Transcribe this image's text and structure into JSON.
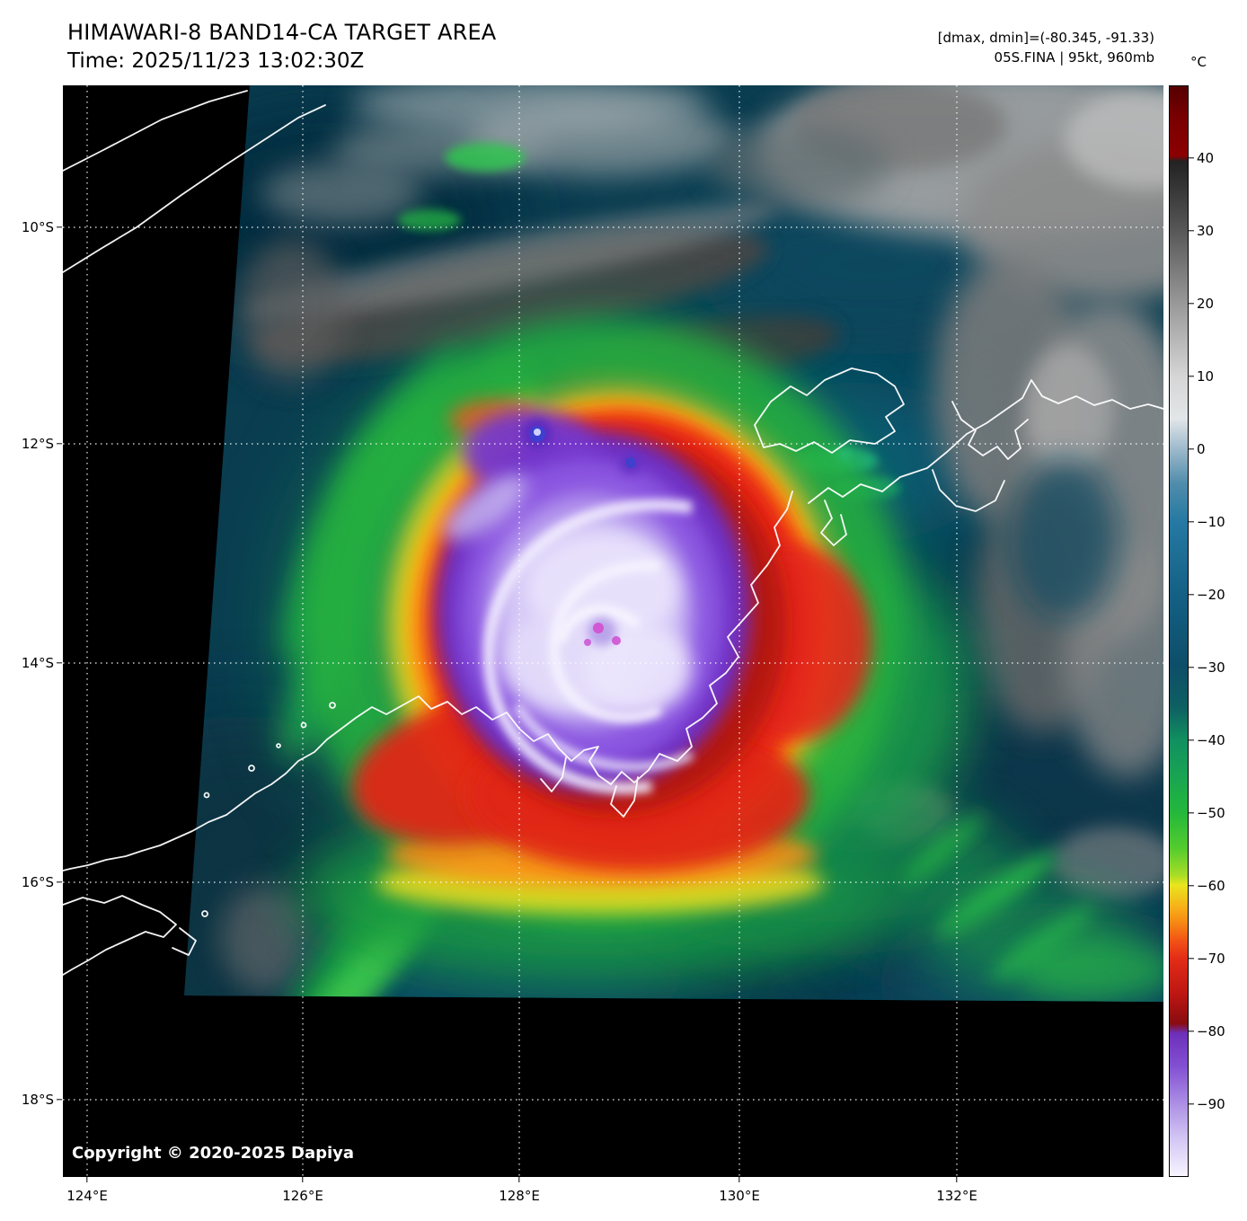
{
  "header": {
    "title": "HIMAWARI-8 BAND14-CA TARGET AREA",
    "time": "Time: 2025/11/23 13:02:30Z",
    "dmax_dmin": "[dmax, dmin]=(-80.345, -91.33)",
    "storm": "05S.FINA | 95kt, 960mb"
  },
  "map": {
    "copyright": "Copyright © 2020-2025 Dapiya"
  },
  "axes": {
    "lat_tick_labels": [
      "10°S",
      "12°S",
      "14°S",
      "16°S",
      "18°S"
    ],
    "lon_tick_labels": [
      "124°E",
      "126°E",
      "128°E",
      "130°E",
      "132°E"
    ]
  },
  "colorbar": {
    "unit": "°C",
    "tick_labels": [
      "40",
      "30",
      "20",
      "10",
      "0",
      "−10",
      "−20",
      "−30",
      "−40",
      "−50",
      "−60",
      "−70",
      "−80",
      "−90"
    ],
    "range": [
      50,
      -100
    ],
    "gradient": [
      {
        "p": 0,
        "c": "#550000"
      },
      {
        "p": 3,
        "c": "#7a0000"
      },
      {
        "p": 6.4,
        "c": "#8b0000"
      },
      {
        "p": 6.9,
        "c": "#222222"
      },
      {
        "p": 13,
        "c": "#555555"
      },
      {
        "p": 20,
        "c": "#999999"
      },
      {
        "p": 26.7,
        "c": "#d6d6d6"
      },
      {
        "p": 30.5,
        "c": "#e2e6e8"
      },
      {
        "p": 33.3,
        "c": "#9db9cb"
      },
      {
        "p": 36.5,
        "c": "#4f8cab"
      },
      {
        "p": 40,
        "c": "#2579a2"
      },
      {
        "p": 46.7,
        "c": "#146085"
      },
      {
        "p": 53.3,
        "c": "#0d4e68"
      },
      {
        "p": 57,
        "c": "#0e6062"
      },
      {
        "p": 60,
        "c": "#119060"
      },
      {
        "p": 63.3,
        "c": "#18a452"
      },
      {
        "p": 66.7,
        "c": "#24b83b"
      },
      {
        "p": 70,
        "c": "#55cc2e"
      },
      {
        "p": 72.4,
        "c": "#a8dd26"
      },
      {
        "p": 73.3,
        "c": "#e9e51e"
      },
      {
        "p": 75.4,
        "c": "#f7ae18"
      },
      {
        "p": 76.7,
        "c": "#f78a13"
      },
      {
        "p": 78.4,
        "c": "#f15315"
      },
      {
        "p": 80,
        "c": "#e32d17"
      },
      {
        "p": 83.3,
        "c": "#bd1612"
      },
      {
        "p": 86,
        "c": "#880c10"
      },
      {
        "p": 86.9,
        "c": "#6d2fb9"
      },
      {
        "p": 90,
        "c": "#8351d3"
      },
      {
        "p": 93.3,
        "c": "#ab8ee4"
      },
      {
        "p": 96.5,
        "c": "#d2c5f3"
      },
      {
        "p": 100,
        "c": "#f7f4ff"
      }
    ]
  },
  "colors": {
    "page_background": "#ffffff",
    "map_background": "#000000",
    "coastline": "#ffffff",
    "gridline": "#ffffff",
    "text": "#000000",
    "copyright_text": "#ffffff"
  }
}
